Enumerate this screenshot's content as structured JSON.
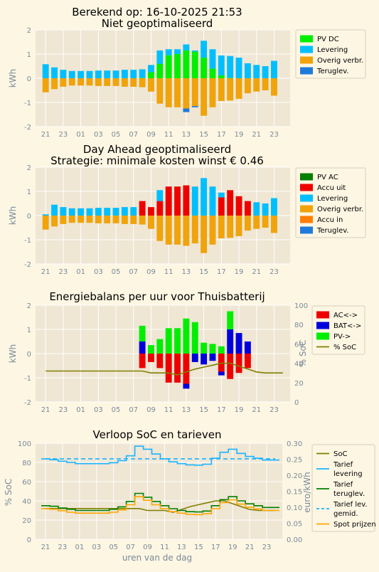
{
  "colors": {
    "background": "#fdf6e3",
    "plot_bg": "#efe6d4",
    "grid": "#ffffff",
    "axis_text": "#7a8a99",
    "pv": "#00ee00",
    "levering": "#00bfff",
    "verbruik": "#f0a30a",
    "teruglev": "#1e7bdb",
    "pv_ac": "#007f00",
    "accu_uit": "#ee0000",
    "accu_in": "#ff7f00",
    "ac": "#ee0000",
    "bat": "#0000dd",
    "soc": "#808000",
    "tarief_lev": "#1ab4ff",
    "tarief_terug": "#007f00",
    "tarief_gemid": "#1ab4ff",
    "spot": "#ffa500"
  },
  "xlabel": "uren van de dag",
  "chart_data": [
    {
      "type": "bar",
      "title": "Berekend op: 16-10-2025 21:53",
      "subtitle": "Niet geoptimaliseerd",
      "ylabel": "kWh",
      "ylim": [
        -2,
        2
      ],
      "yticks": [
        "-2",
        "-1",
        "0",
        "1",
        "2"
      ],
      "categories": [
        "21",
        "22",
        "23",
        "00",
        "01",
        "02",
        "03",
        "04",
        "05",
        "06",
        "07",
        "08",
        "09",
        "10",
        "11",
        "12",
        "13",
        "14",
        "15",
        "16",
        "17",
        "18",
        "19",
        "20",
        "21",
        "22",
        "23"
      ],
      "tick_labels": [
        "21",
        "23",
        "01",
        "03",
        "05",
        "07",
        "09",
        "11",
        "13",
        "15",
        "17",
        "19",
        "21",
        "23"
      ],
      "series": [
        {
          "name": "PV DC",
          "color": "pv",
          "stack": "pos",
          "values": [
            0,
            0,
            0,
            0,
            0,
            0,
            0,
            0,
            0,
            0,
            0,
            0.02,
            0.25,
            0.6,
            0.95,
            1.0,
            1.15,
            1.1,
            0.85,
            0.4,
            0.12,
            0.02,
            0,
            0,
            0,
            0,
            0
          ]
        },
        {
          "name": "Levering",
          "color": "levering",
          "stack": "pos",
          "values": [
            0.58,
            0.45,
            0.35,
            0.3,
            0.3,
            0.3,
            0.32,
            0.32,
            0.32,
            0.35,
            0.35,
            0.35,
            0.3,
            0.55,
            0.25,
            0.2,
            0.25,
            0.05,
            0.7,
            0.8,
            0.82,
            0.9,
            0.85,
            0.62,
            0.55,
            0.5,
            0.72
          ]
        },
        {
          "name": "Overig verbr.",
          "color": "verbruik",
          "stack": "neg",
          "values": [
            -0.58,
            -0.45,
            -0.35,
            -0.3,
            -0.3,
            -0.3,
            -0.32,
            -0.32,
            -0.32,
            -0.35,
            -0.35,
            -0.37,
            -0.55,
            -1.05,
            -1.2,
            -1.2,
            -1.25,
            -1.15,
            -1.55,
            -1.2,
            -0.94,
            -0.92,
            -0.85,
            -0.62,
            -0.55,
            -0.5,
            -0.72
          ]
        },
        {
          "name": "Teruglev.",
          "color": "teruglev",
          "stack": "neg",
          "values": [
            0,
            0,
            0,
            0,
            0,
            0,
            0,
            0,
            0,
            0,
            0,
            0,
            0,
            0,
            0,
            0,
            -0.15,
            -0.05,
            0,
            0,
            0,
            0,
            0,
            0,
            0,
            0,
            0
          ]
        }
      ]
    },
    {
      "type": "bar",
      "title": "Day Ahead geoptimaliseerd",
      "subtitle": "Strategie: minimale kosten winst € 0.46",
      "ylabel": "kWh",
      "ylim": [
        -2,
        2
      ],
      "yticks": [
        "-2",
        "-1",
        "0",
        "1",
        "2"
      ],
      "categories": [
        "21",
        "22",
        "23",
        "00",
        "01",
        "02",
        "03",
        "04",
        "05",
        "06",
        "07",
        "08",
        "09",
        "10",
        "11",
        "12",
        "13",
        "14",
        "15",
        "16",
        "17",
        "18",
        "19",
        "20",
        "21",
        "22",
        "23"
      ],
      "tick_labels": [
        "21",
        "23",
        "01",
        "03",
        "05",
        "07",
        "09",
        "11",
        "13",
        "15",
        "17",
        "19",
        "21",
        "23"
      ],
      "series": [
        {
          "name": "PV AC",
          "color": "pv_ac",
          "stack": "pos",
          "values": [
            0,
            0,
            0,
            0,
            0,
            0,
            0,
            0,
            0,
            0,
            0,
            0,
            0,
            0,
            0,
            0,
            0,
            0,
            0,
            0,
            0,
            0,
            0,
            0,
            0,
            0,
            0
          ]
        },
        {
          "name": "Accu uit",
          "color": "accu_uit",
          "stack": "pos",
          "values": [
            0,
            0,
            0,
            0,
            0,
            0,
            0,
            0,
            0,
            0,
            0,
            0.6,
            0.35,
            0.6,
            1.2,
            1.2,
            1.25,
            0,
            0,
            0,
            0.75,
            1.05,
            0.8,
            0.6,
            0,
            0,
            0
          ]
        },
        {
          "name": "Levering",
          "color": "levering",
          "stack": "pos",
          "values": [
            0.05,
            0.45,
            0.35,
            0.3,
            0.3,
            0.3,
            0.32,
            0.32,
            0.32,
            0.35,
            0.35,
            0,
            0,
            0.45,
            0,
            0,
            0,
            1.2,
            1.55,
            1.2,
            0.2,
            0,
            0,
            0,
            0.55,
            0.5,
            0.72
          ]
        },
        {
          "name": "Overig verbr.",
          "color": "verbruik",
          "stack": "neg",
          "values": [
            -0.58,
            -0.45,
            -0.35,
            -0.3,
            -0.3,
            -0.3,
            -0.32,
            -0.32,
            -0.32,
            -0.35,
            -0.35,
            -0.37,
            -0.55,
            -1.05,
            -1.2,
            -1.2,
            -1.25,
            -1.15,
            -1.55,
            -1.2,
            -0.94,
            -0.92,
            -0.85,
            -0.62,
            -0.55,
            -0.5,
            -0.72
          ]
        },
        {
          "name": "Accu in",
          "color": "accu_in",
          "stack": "neg",
          "values": [
            0,
            0,
            0,
            0,
            0,
            0,
            0,
            0,
            0,
            0,
            0,
            0,
            0,
            0,
            0,
            0,
            0,
            0,
            0,
            0,
            0,
            0,
            0,
            0,
            0,
            0,
            0
          ]
        },
        {
          "name": "Teruglev.",
          "color": "teruglev",
          "stack": "neg",
          "values": [
            0,
            0,
            0,
            0,
            0,
            0,
            0,
            0,
            0,
            0,
            0,
            0,
            0,
            0,
            0,
            0,
            0,
            0,
            0,
            0,
            0,
            0,
            0,
            0,
            0,
            0,
            0
          ]
        }
      ]
    },
    {
      "type": "bar",
      "title": "Energiebalans per uur voor Thuisbatterij",
      "ylabel": "kWh",
      "ylabel_right": "% SoC",
      "ylim": [
        -2,
        2
      ],
      "yticks": [
        "-2",
        "-1",
        "0",
        "1",
        "2"
      ],
      "ylim_right": [
        0,
        100
      ],
      "yticks_right": [
        "0",
        "20",
        "40",
        "60",
        "80",
        "100"
      ],
      "categories": [
        "21",
        "22",
        "23",
        "00",
        "01",
        "02",
        "03",
        "04",
        "05",
        "06",
        "07",
        "08",
        "09",
        "10",
        "11",
        "12",
        "13",
        "14",
        "15",
        "16",
        "17",
        "18",
        "19",
        "20",
        "21",
        "22",
        "23"
      ],
      "tick_labels": [
        "21",
        "23",
        "01",
        "03",
        "05",
        "07",
        "09",
        "11",
        "13",
        "15",
        "17",
        "19",
        "21",
        "23"
      ],
      "series": [
        {
          "name": "AC<->",
          "color": "ac",
          "stack": "signed",
          "values": [
            0,
            0,
            0,
            0,
            0,
            0,
            0,
            0,
            0,
            0,
            0,
            -0.6,
            -0.35,
            -0.6,
            -1.2,
            -1.2,
            -1.25,
            0,
            0,
            0,
            -0.75,
            -1.05,
            -0.8,
            -0.6,
            0,
            0,
            0
          ]
        },
        {
          "name": "BAT<->",
          "color": "bat",
          "stack": "signed",
          "values": [
            0,
            0,
            0,
            0,
            0,
            0,
            0,
            0,
            0,
            0,
            0,
            0.5,
            0,
            0,
            0,
            0,
            -0.2,
            -0.35,
            -0.45,
            -0.3,
            -0.15,
            1.0,
            0.85,
            0.5,
            0,
            0,
            0
          ]
        },
        {
          "name": "PV->",
          "color": "pv",
          "stack": "signed",
          "values": [
            0,
            0,
            0,
            0,
            0,
            0,
            0,
            0,
            0,
            0,
            0,
            0.65,
            0.35,
            0.6,
            1.05,
            1.05,
            1.45,
            1.3,
            0.45,
            0.4,
            0.3,
            0.75,
            0,
            0,
            0,
            0,
            0
          ]
        }
      ],
      "soc": {
        "name": "% SoC",
        "color": "soc",
        "values": [
          32,
          32,
          32,
          32,
          32,
          32,
          32,
          32,
          32,
          32,
          32,
          32,
          30,
          30,
          30,
          28,
          31,
          34,
          36,
          38,
          40,
          40,
          37,
          34,
          31,
          30,
          30,
          30
        ]
      }
    },
    {
      "type": "line",
      "title": "Verloop SoC en tarieven",
      "ylabel": "% SoC",
      "ylabel_right": "euro/kWh",
      "ylim": [
        0,
        100
      ],
      "yticks": [
        "0",
        "20",
        "40",
        "60",
        "80",
        "100"
      ],
      "ylim_right": [
        0,
        0.32
      ],
      "yticks_right": [
        "0.00",
        "0.05",
        "0.10",
        "0.15",
        "0.20",
        "0.25",
        "0.30"
      ],
      "categories": [
        "21",
        "22",
        "23",
        "00",
        "01",
        "02",
        "03",
        "04",
        "05",
        "06",
        "07",
        "08",
        "09",
        "10",
        "11",
        "12",
        "13",
        "14",
        "15",
        "16",
        "17",
        "18",
        "19",
        "20",
        "21",
        "22",
        "23",
        "24"
      ],
      "tick_labels": [
        "21",
        "23",
        "01",
        "03",
        "05",
        "07",
        "09",
        "11",
        "13",
        "15",
        "17",
        "19",
        "21",
        "23"
      ],
      "series": [
        {
          "name": "SoC",
          "color": "soc",
          "axis": "left",
          "style": "line",
          "values": [
            32,
            32,
            32,
            32,
            32,
            32,
            32,
            32,
            32,
            32,
            32,
            32,
            30,
            30,
            30,
            28,
            31,
            34,
            36,
            38,
            40,
            40,
            37,
            34,
            31,
            30,
            30,
            30
          ]
        },
        {
          "name": "Tarief levering",
          "color": "tarief_lev",
          "axis": "right",
          "style": "step",
          "values": [
            0.268,
            0.265,
            0.26,
            0.256,
            0.252,
            0.252,
            0.252,
            0.252,
            0.255,
            0.262,
            0.278,
            0.31,
            0.3,
            0.284,
            0.268,
            0.258,
            0.252,
            0.248,
            0.247,
            0.25,
            0.27,
            0.29,
            0.3,
            0.286,
            0.276,
            0.27,
            0.264,
            0.264
          ]
        },
        {
          "name": "Tarief teruglev.",
          "color": "tarief_terug",
          "axis": "right",
          "style": "step",
          "values": [
            0.112,
            0.11,
            0.104,
            0.1,
            0.096,
            0.096,
            0.096,
            0.096,
            0.1,
            0.108,
            0.126,
            0.153,
            0.14,
            0.126,
            0.112,
            0.102,
            0.096,
            0.092,
            0.091,
            0.094,
            0.112,
            0.132,
            0.142,
            0.128,
            0.118,
            0.112,
            0.106,
            0.106
          ]
        },
        {
          "name": "Tarief lev. gemid.",
          "color": "tarief_gemid",
          "axis": "right",
          "style": "dash",
          "values": [
            0.268,
            0.268,
            0.268,
            0.268,
            0.268,
            0.268,
            0.268,
            0.268,
            0.268,
            0.268,
            0.268,
            0.268,
            0.268,
            0.268,
            0.268,
            0.268,
            0.268,
            0.268,
            0.268,
            0.268,
            0.268,
            0.268,
            0.268,
            0.268,
            0.268,
            0.268,
            0.268,
            0.268
          ]
        },
        {
          "name": "Spot prijzen",
          "color": "spot",
          "axis": "right",
          "style": "step",
          "values": [
            0.102,
            0.1,
            0.095,
            0.09,
            0.087,
            0.087,
            0.087,
            0.087,
            0.09,
            0.098,
            0.115,
            0.142,
            0.13,
            0.115,
            0.102,
            0.092,
            0.087,
            0.083,
            0.082,
            0.085,
            0.102,
            0.122,
            0.131,
            0.117,
            0.107,
            0.101,
            0.096,
            0.096
          ]
        }
      ]
    }
  ],
  "legends": [
    [
      "PV DC",
      "Levering",
      "Overig verbr.",
      "Teruglev."
    ],
    [
      "PV AC",
      "Accu uit",
      "Levering",
      "Overig verbr.",
      "Accu in",
      "Teruglev."
    ],
    [
      "AC<->",
      "BAT<->",
      "PV->",
      "% SoC"
    ],
    [
      "SoC",
      "Tarief\nlevering",
      "Tarief\nteruglev.",
      "Tarief lev.\ngemid.",
      "Spot prijzen"
    ]
  ]
}
